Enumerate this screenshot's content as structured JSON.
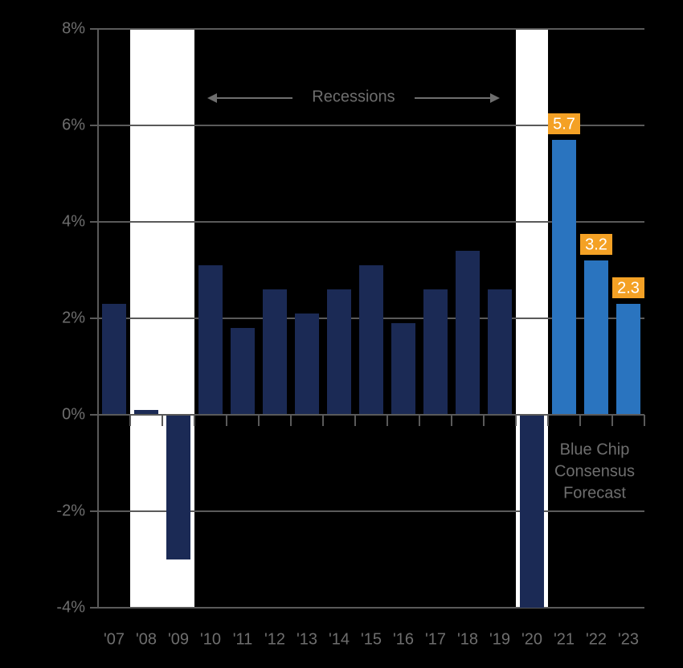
{
  "chart_data": {
    "type": "bar",
    "categories": [
      "'07",
      "'08",
      "'09",
      "'10",
      "'11",
      "'12",
      "'13",
      "'14",
      "'15",
      "'16",
      "'17",
      "'18",
      "'19",
      "'20",
      "'21",
      "'22",
      "'23"
    ],
    "values": [
      2.3,
      0.1,
      -3.0,
      3.1,
      1.8,
      2.6,
      2.1,
      2.6,
      3.1,
      1.9,
      2.6,
      3.4,
      2.6,
      -4,
      5.7,
      3.2,
      2.3
    ],
    "value_labels": [
      null,
      null,
      null,
      null,
      null,
      null,
      null,
      null,
      null,
      null,
      null,
      null,
      null,
      null,
      "5.7",
      "3.2",
      "2.3"
    ],
    "colors": [
      "#1b2a55",
      "#1b2a55",
      "#1b2a55",
      "#1b2a55",
      "#1b2a55",
      "#1b2a55",
      "#1b2a55",
      "#1b2a55",
      "#1b2a55",
      "#1b2a55",
      "#1b2a55",
      "#1b2a55",
      "#1b2a55",
      "#1b2a55",
      "#2a74bf",
      "#2a74bf",
      "#2a74bf"
    ],
    "label_color": "#f4a125",
    "ylim": [
      -4,
      8
    ],
    "yticks": [
      {
        "value": -4,
        "label": "-4%"
      },
      {
        "value": -2,
        "label": "-2%"
      },
      {
        "value": 0,
        "label": "0%"
      },
      {
        "value": 2,
        "label": "2%"
      },
      {
        "value": 4,
        "label": "4%"
      },
      {
        "value": 6,
        "label": "6%"
      },
      {
        "value": 8,
        "label": "8%"
      }
    ],
    "grid": true,
    "recession_spans": [
      {
        "start": "'08",
        "end": "'09"
      },
      {
        "start": "'20",
        "end": "'20"
      }
    ],
    "annotations": {
      "recessions": "Recessions",
      "forecast": [
        "Blue Chip",
        "Consensus",
        "Forecast"
      ]
    }
  }
}
